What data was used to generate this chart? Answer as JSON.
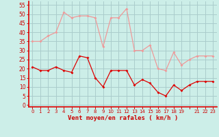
{
  "x": [
    0,
    1,
    2,
    3,
    4,
    5,
    6,
    7,
    8,
    9,
    10,
    11,
    12,
    13,
    14,
    15,
    16,
    17,
    18,
    19,
    20,
    21,
    22,
    23
  ],
  "wind_avg": [
    21,
    19,
    19,
    21,
    19,
    18,
    27,
    26,
    15,
    10,
    19,
    19,
    19,
    11,
    14,
    12,
    7,
    5,
    11,
    8,
    11,
    13,
    13,
    13
  ],
  "wind_gust": [
    35,
    35,
    38,
    40,
    51,
    48,
    49,
    49,
    48,
    32,
    48,
    48,
    53,
    30,
    30,
    33,
    20,
    19,
    29,
    22,
    25,
    27,
    27,
    27
  ],
  "background_color": "#cceee8",
  "grid_color": "#aacccc",
  "avg_color": "#dd0000",
  "gust_color": "#ee9999",
  "xlabel": "Vent moyen/en rafales ( km/h )",
  "xlabel_color": "#cc0000",
  "tick_color": "#cc0000",
  "yticks": [
    0,
    5,
    10,
    15,
    20,
    25,
    30,
    35,
    40,
    45,
    50,
    55
  ],
  "xtick_labels": [
    "0",
    "1",
    "2",
    "3",
    "4",
    "5",
    "6",
    "7",
    "8",
    "9",
    "10",
    "11",
    "12",
    "13",
    "14",
    "15",
    "16",
    "17",
    "18",
    "19",
    "",
    "21",
    "22",
    "23"
  ],
  "ylim": [
    -1,
    57
  ],
  "xlim": [
    -0.5,
    23.5
  ]
}
